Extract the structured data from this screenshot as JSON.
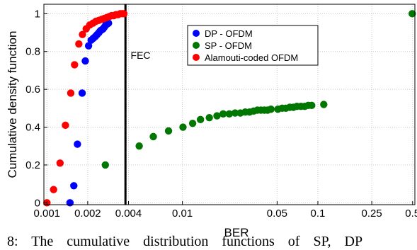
{
  "caption": "8: The cumulative distribution functions of SP, DP",
  "chart_data": {
    "type": "scatter",
    "xlabel": "BER",
    "ylabel": "Cumulative density function",
    "xscale": "log",
    "xlim": [
      0.00095,
      0.52
    ],
    "ylim": [
      -0.01,
      1.05
    ],
    "xticks": [
      {
        "value": 0.001,
        "label": "0.001"
      },
      {
        "value": 0.002,
        "label": "0.002"
      },
      {
        "value": 0.004,
        "label": "0.004"
      },
      {
        "value": 0.01,
        "label": "0.01"
      },
      {
        "value": 0.05,
        "label": "0.05"
      },
      {
        "value": 0.1,
        "label": "0.1"
      },
      {
        "value": 0.25,
        "label": "0.25"
      },
      {
        "value": 0.5,
        "label": "0.5"
      }
    ],
    "yticks": [
      {
        "value": 0,
        "label": "0"
      },
      {
        "value": 0.2,
        "label": "0.2"
      },
      {
        "value": 0.4,
        "label": "0.4"
      },
      {
        "value": 0.6,
        "label": "0.6"
      },
      {
        "value": 0.8,
        "label": "0.8"
      },
      {
        "value": 1,
        "label": "1"
      }
    ],
    "grid": true,
    "legend_position": "top-center",
    "annotation": {
      "text": "FEC",
      "x": 0.0041,
      "y": 0.78
    },
    "threshold_line": {
      "x": 0.0038
    },
    "series": [
      {
        "name": "DP - OFDM",
        "color": "#0000ff",
        "x": [
          0.00148,
          0.00158,
          0.00168,
          0.00182,
          0.00192,
          0.00203,
          0.00212,
          0.0022,
          0.00228,
          0.00235,
          0.00242,
          0.00248,
          0.00254,
          0.0026,
          0.00266,
          0.00272,
          0.00278,
          0.00285
        ],
        "y": [
          0.0,
          0.09,
          0.31,
          0.58,
          0.75,
          0.83,
          0.86,
          0.87,
          0.88,
          0.89,
          0.9,
          0.91,
          0.915,
          0.92,
          0.93,
          0.94,
          0.945,
          0.95
        ]
      },
      {
        "name": "SP - OFDM",
        "color": "#007700",
        "x": [
          0.0027,
          0.0048,
          0.0061,
          0.0079,
          0.0101,
          0.0119,
          0.0136,
          0.0158,
          0.018,
          0.02,
          0.0222,
          0.0245,
          0.0268,
          0.0291,
          0.0313,
          0.0336,
          0.0358,
          0.038,
          0.0403,
          0.0426,
          0.0451,
          0.0507,
          0.0545,
          0.058,
          0.062,
          0.066,
          0.07,
          0.075,
          0.08,
          0.085,
          0.09,
          0.1105,
          0.497
        ],
        "y": [
          0.2,
          0.3,
          0.35,
          0.38,
          0.4,
          0.42,
          0.44,
          0.45,
          0.46,
          0.47,
          0.47,
          0.475,
          0.475,
          0.48,
          0.48,
          0.485,
          0.49,
          0.49,
          0.49,
          0.49,
          0.495,
          0.495,
          0.5,
          0.5,
          0.505,
          0.505,
          0.51,
          0.51,
          0.51,
          0.515,
          0.515,
          0.52,
          1.0
        ]
      },
      {
        "name": "Alamouti-coded OFDM",
        "color": "#ff0000",
        "x": [
          0.001,
          0.00112,
          0.00125,
          0.00137,
          0.0015,
          0.0016,
          0.00172,
          0.00183,
          0.00195,
          0.00207,
          0.00219,
          0.0023,
          0.00242,
          0.00254,
          0.00265,
          0.00277,
          0.00289,
          0.003,
          0.00312,
          0.00323,
          0.00335,
          0.00348,
          0.0036,
          0.0037
        ],
        "y": [
          0.0,
          0.07,
          0.21,
          0.41,
          0.58,
          0.73,
          0.84,
          0.89,
          0.92,
          0.94,
          0.95,
          0.96,
          0.965,
          0.97,
          0.975,
          0.98,
          0.985,
          0.99,
          0.99,
          0.995,
          0.995,
          1.0,
          1.0,
          1.0
        ]
      }
    ]
  }
}
